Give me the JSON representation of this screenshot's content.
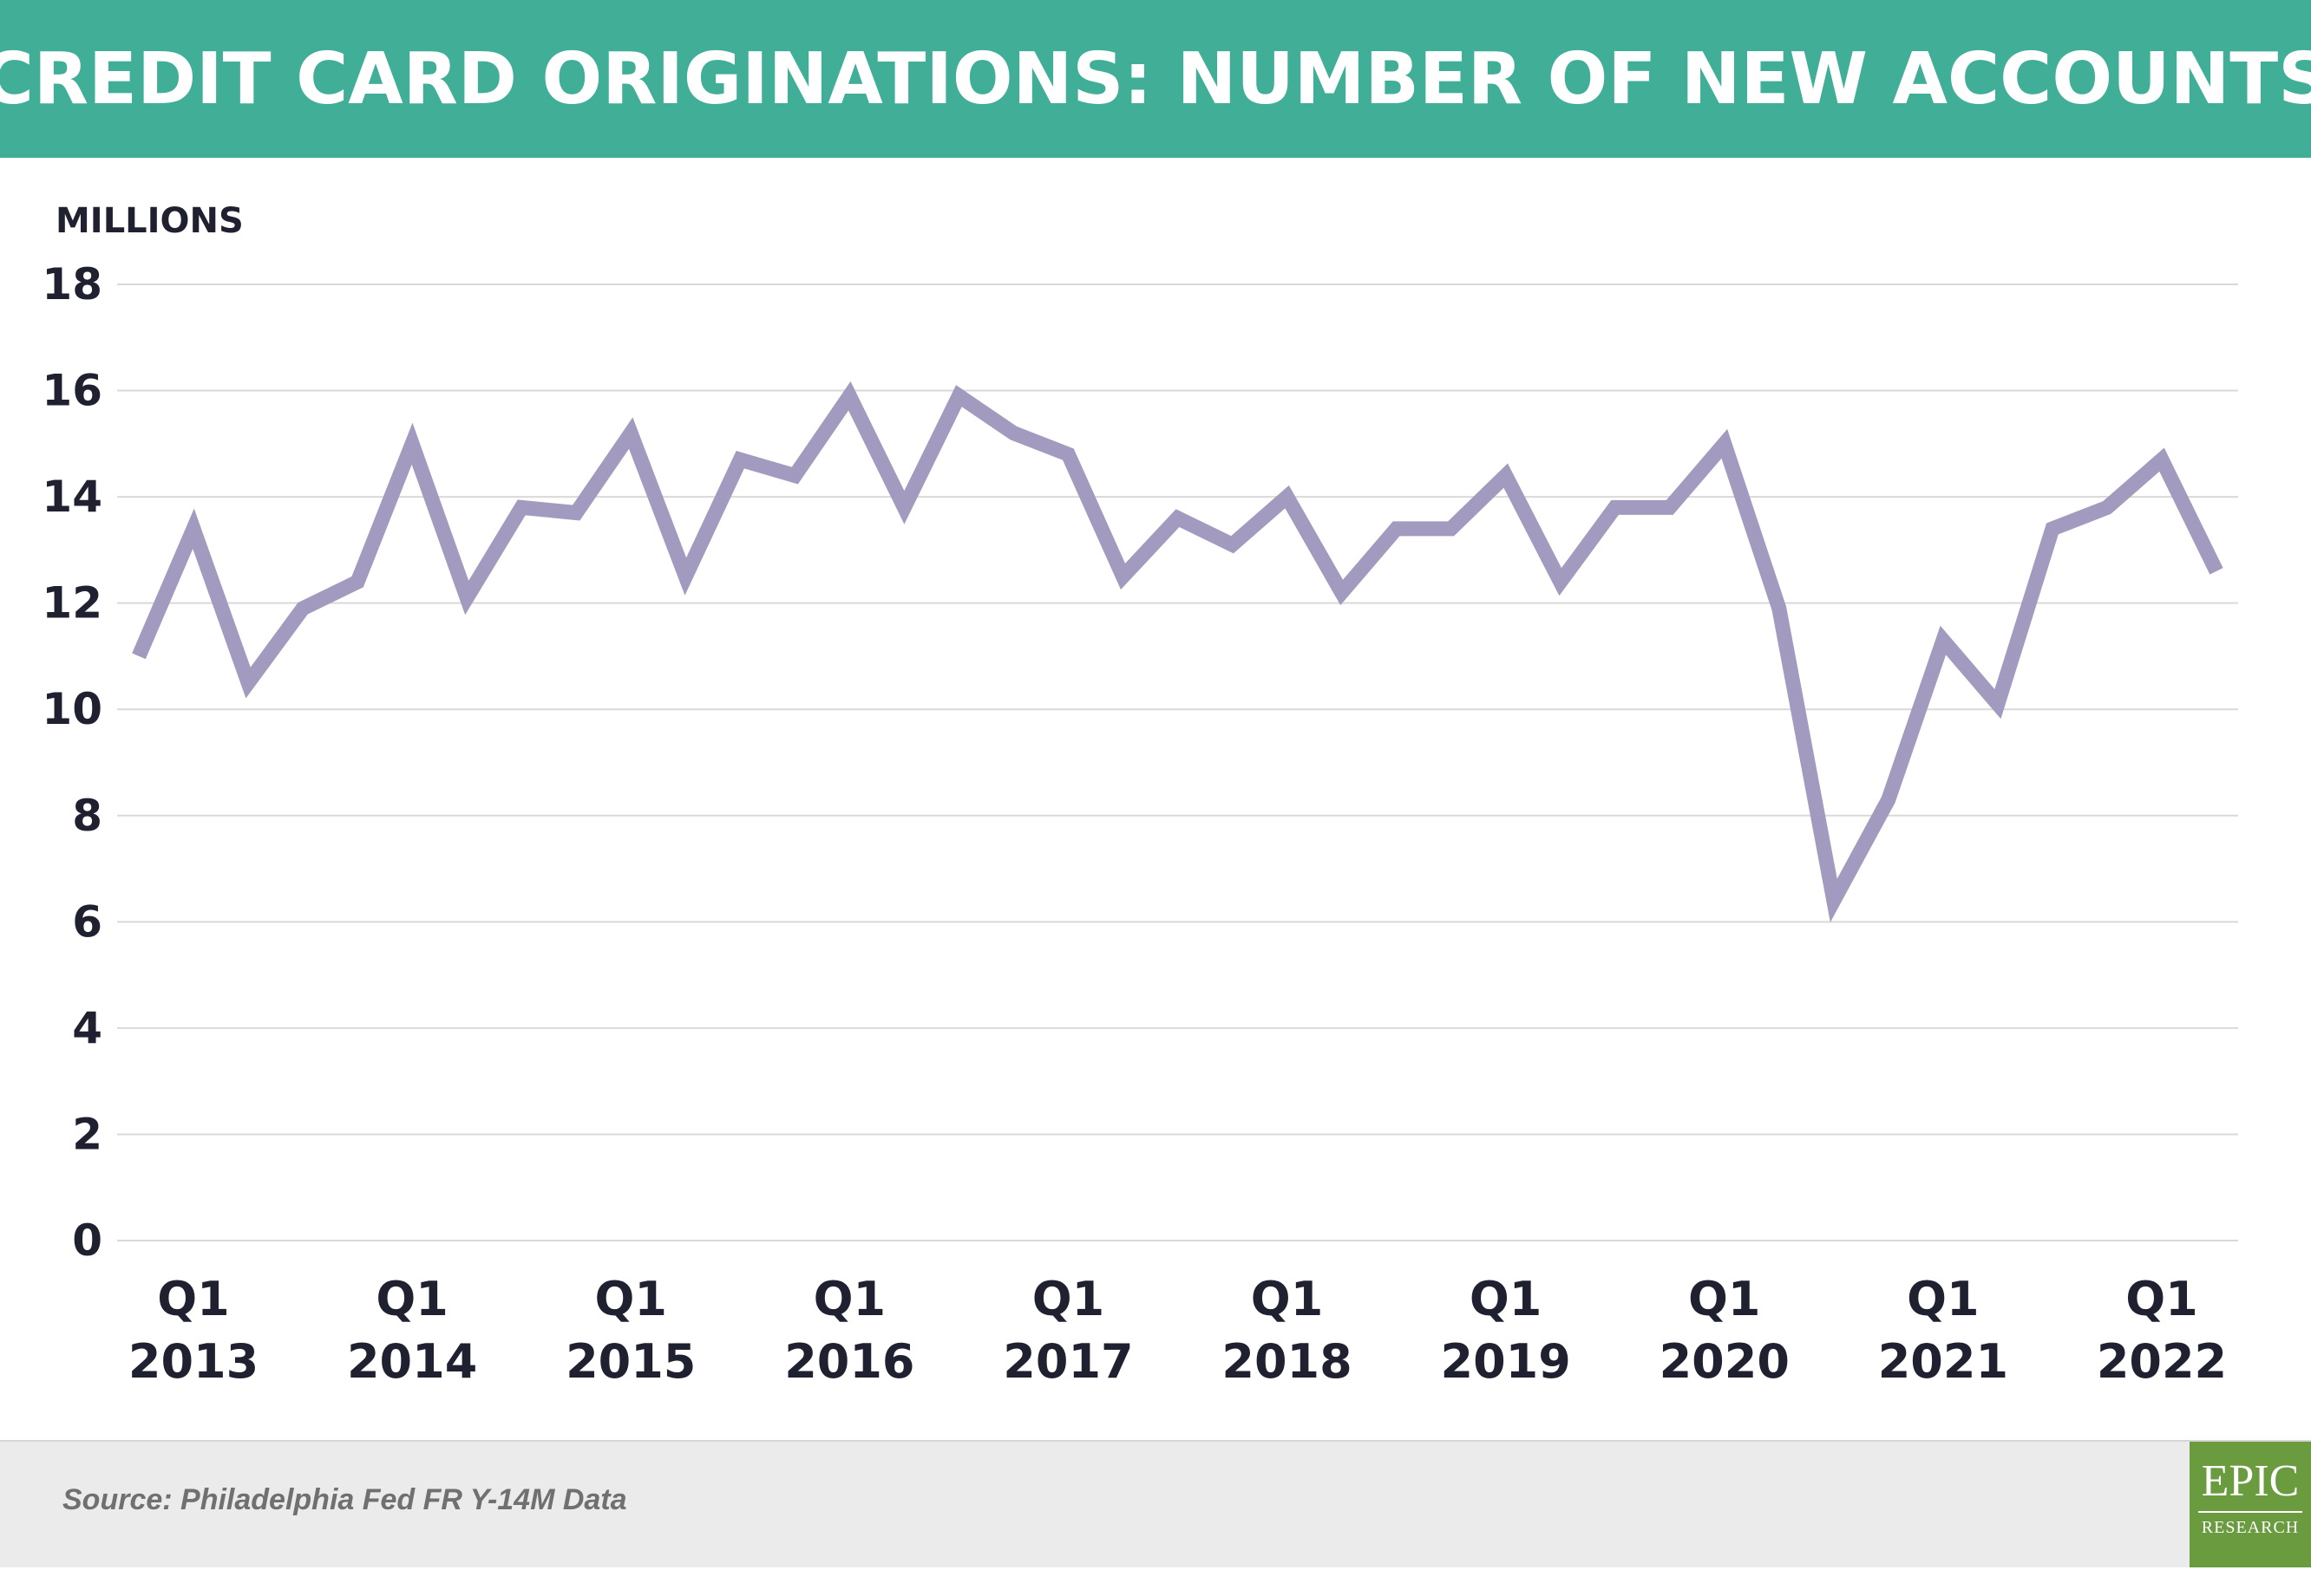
{
  "title": "CREDIT CARD ORIGINATIONS: NUMBER OF NEW ACCOUNTS",
  "source": "Source: Philadelphia Fed FR Y-14M Data",
  "logo": {
    "line1": "EPIC",
    "line2": "RESEARCH"
  },
  "colors": {
    "header_bg": "#41ae98",
    "line": "#a29bbf",
    "text": "#1f2130",
    "grid": "#d9d9d9"
  },
  "chart_data": {
    "type": "line",
    "title": "CREDIT CARD ORIGINATIONS: NUMBER OF NEW ACCOUNTS",
    "ylabel": "MILLIONS",
    "xlabel": "",
    "ylim": [
      0,
      18
    ],
    "yticks": [
      0,
      2,
      4,
      6,
      8,
      10,
      12,
      14,
      16,
      18
    ],
    "grid": true,
    "xtick_labels": [
      {
        "index": 1,
        "label": [
          "Q1",
          "2013"
        ]
      },
      {
        "index": 5,
        "label": [
          "Q1",
          "2014"
        ]
      },
      {
        "index": 9,
        "label": [
          "Q1",
          "2015"
        ]
      },
      {
        "index": 13,
        "label": [
          "Q1",
          "2016"
        ]
      },
      {
        "index": 17,
        "label": [
          "Q1",
          "2017"
        ]
      },
      {
        "index": 21,
        "label": [
          "Q1",
          "2018"
        ]
      },
      {
        "index": 25,
        "label": [
          "Q1",
          "2019"
        ]
      },
      {
        "index": 29,
        "label": [
          "Q1",
          "2020"
        ]
      },
      {
        "index": 33,
        "label": [
          "Q1",
          "2021"
        ]
      },
      {
        "index": 37,
        "label": [
          "Q1",
          "2022"
        ]
      }
    ],
    "series": [
      {
        "values": [
          11.0,
          13.4,
          10.5,
          11.9,
          12.4,
          15.0,
          12.1,
          13.8,
          13.7,
          15.2,
          12.5,
          14.7,
          14.4,
          15.9,
          13.8,
          15.9,
          15.2,
          14.8,
          12.5,
          13.6,
          13.1,
          14.0,
          12.2,
          13.4,
          13.4,
          14.4,
          12.4,
          13.8,
          13.8,
          15.0,
          11.9,
          6.4,
          8.3,
          11.3,
          10.1,
          13.4,
          13.8,
          14.7,
          12.6
        ]
      }
    ]
  }
}
